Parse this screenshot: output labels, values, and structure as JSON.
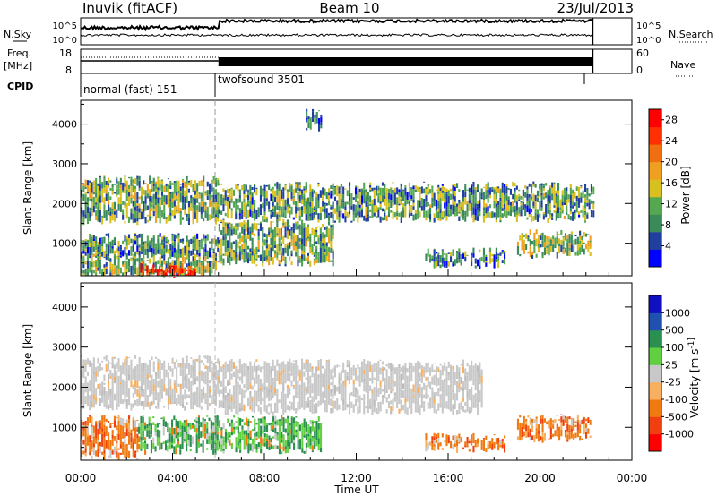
{
  "header": {
    "site": "Inuvik (fitACF)",
    "beam": "Beam 10",
    "date": "23/Jul/2013"
  },
  "params": {
    "nsky_label": "N.Sky",
    "nsky_ticks": [
      "10^5",
      "10^0"
    ],
    "nsearch_label": "N.Search",
    "nsearch_ticks": [
      "10^5",
      "10^0"
    ],
    "freq_label": [
      "Freq.",
      "[MHz]"
    ],
    "freq_ticks": [
      "18",
      "8"
    ],
    "nave_label": "Nave",
    "nave_ticks": [
      "60",
      "0"
    ],
    "cpid_label": "CPID",
    "modes": [
      {
        "name": "normal (fast) 151",
        "start_hour": 0,
        "end_hour": 6
      },
      {
        "name": "twofsound 3501",
        "start_hour": 6,
        "end_hour": 22.3
      }
    ]
  },
  "colors": {
    "power": [
      "#0000ff",
      "#2040a0",
      "#3a8a5a",
      "#55a850",
      "#d8c020",
      "#f0a020",
      "#f07010",
      "#ff3000",
      "#ff0000"
    ],
    "velocity": [
      "#ff0000",
      "#f04010",
      "#f07a10",
      "#f8b060",
      "#c8c8c8",
      "#60d040",
      "#2a9050",
      "#2050b0",
      "#1010c0"
    ]
  },
  "chart_data": [
    {
      "type": "heatmap",
      "name": "power",
      "xlabel": "",
      "ylabel": "Slant Range [km]",
      "xlim": [
        0,
        24
      ],
      "ylim": [
        180,
        4600
      ],
      "yticks": [
        1000,
        2000,
        3000,
        4000
      ],
      "colorbar": {
        "label": "Power [dB]",
        "ticks": [
          "4",
          "8",
          "12",
          "16",
          "20",
          "24",
          "28"
        ],
        "range": [
          0,
          30
        ]
      },
      "echo_bands": [
        {
          "t0": 0.0,
          "t1": 6.0,
          "r0": 1550,
          "r1": 2600,
          "level": 11
        },
        {
          "t0": 6.0,
          "t1": 22.3,
          "r0": 1600,
          "r1": 2450,
          "level": 10
        },
        {
          "t0": 0.0,
          "t1": 6.0,
          "r0": 650,
          "r1": 1150,
          "level": 9
        },
        {
          "t0": 6.0,
          "t1": 11.0,
          "r0": 500,
          "r1": 1500,
          "level": 11
        },
        {
          "t0": 0.0,
          "t1": 6.0,
          "r0": 180,
          "r1": 650,
          "level": 12
        },
        {
          "t0": 2.5,
          "t1": 5.0,
          "r0": 180,
          "r1": 400,
          "level": 27
        },
        {
          "t0": 19.0,
          "t1": 22.2,
          "r0": 700,
          "r1": 1250,
          "level": 13
        },
        {
          "t0": 15.0,
          "t1": 18.5,
          "r0": 450,
          "r1": 800,
          "level": 8
        },
        {
          "t0": 9.8,
          "t1": 10.5,
          "r0": 3900,
          "r1": 4300,
          "level": 6
        }
      ]
    },
    {
      "type": "heatmap",
      "name": "velocity",
      "xlabel": "Time UT",
      "ylabel": "Slant Range [km]",
      "xlim": [
        0,
        24
      ],
      "ylim": [
        180,
        4600
      ],
      "xticks": [
        "00:00",
        "04:00",
        "08:00",
        "12:00",
        "16:00",
        "20:00",
        "00:00"
      ],
      "yticks": [
        1000,
        2000,
        3000,
        4000
      ],
      "colorbar": {
        "label": "Velocity [m s^-1]",
        "ticks": [
          "-1000",
          "-500",
          "-100",
          "-25",
          "25",
          "100",
          "500",
          "1000"
        ]
      },
      "echo_bands": [
        {
          "t0": 0.0,
          "t1": 6.0,
          "r0": 1500,
          "r1": 2700,
          "velocity": 0
        },
        {
          "t0": 6.0,
          "t1": 17.5,
          "r0": 1400,
          "r1": 2600,
          "velocity": 0
        },
        {
          "t0": 0.0,
          "t1": 2.5,
          "r0": 250,
          "r1": 1200,
          "velocity": -200
        },
        {
          "t0": 2.5,
          "t1": 10.5,
          "r0": 400,
          "r1": 1200,
          "velocity": 200
        },
        {
          "t0": 19.0,
          "t1": 22.2,
          "r0": 700,
          "r1": 1250,
          "velocity": -300
        },
        {
          "t0": 15.0,
          "t1": 18.5,
          "r0": 450,
          "r1": 750,
          "velocity": -250
        }
      ]
    }
  ]
}
